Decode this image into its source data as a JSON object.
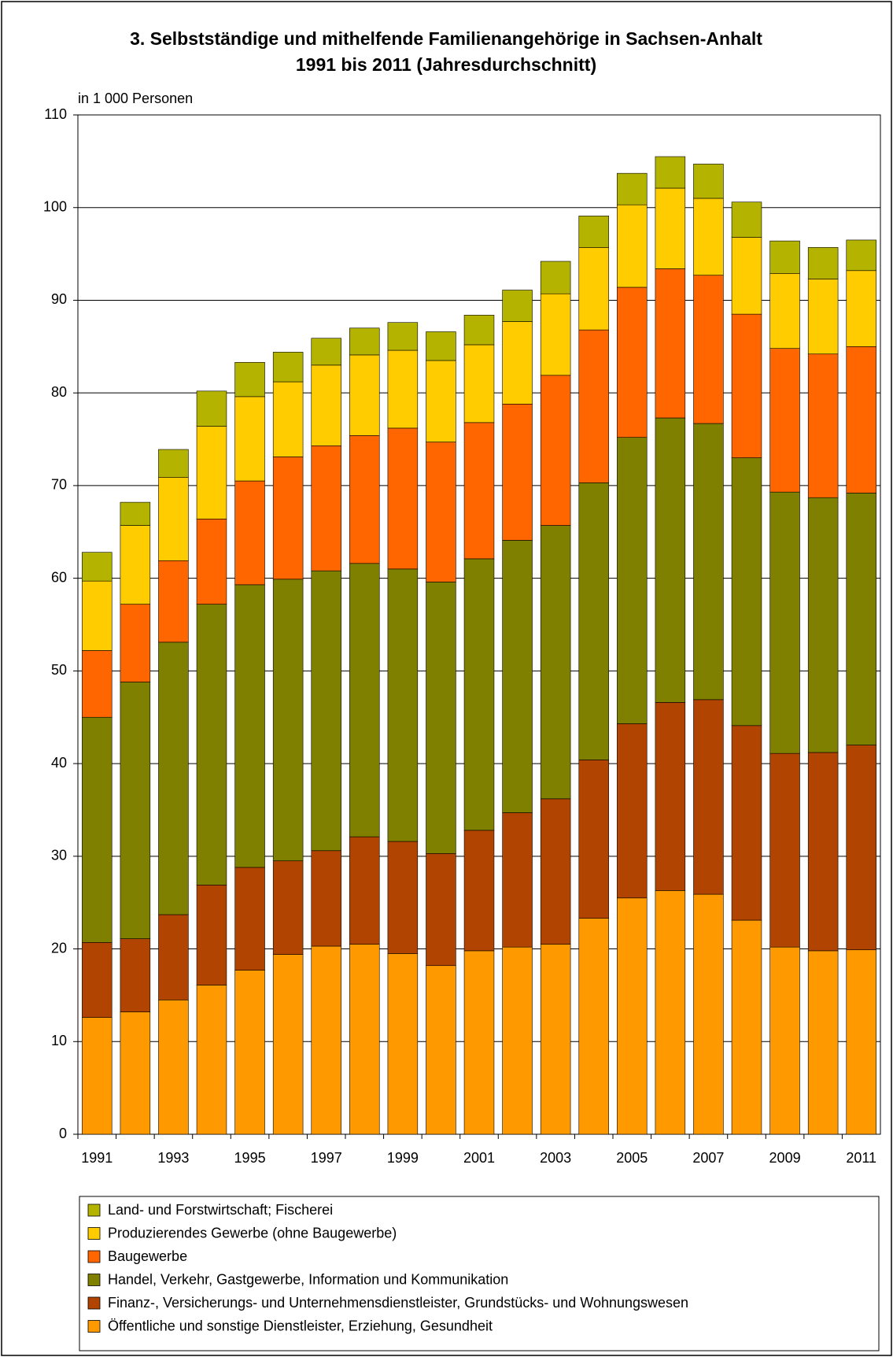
{
  "chart_data": {
    "type": "stacked-bar",
    "title": [
      "3. Selbstständige und mithelfende Familienangehörige in Sachsen-Anhalt",
      "1991 bis 2011  (Jahresdurchschnitt)"
    ],
    "y_label": "in 1 000 Personen",
    "categories": [
      "1991",
      null,
      "1993",
      null,
      "1995",
      null,
      "1997",
      null,
      "1999",
      null,
      "2001",
      null,
      "2003",
      null,
      "2005",
      null,
      "2007",
      null,
      "2009",
      null,
      "2011"
    ],
    "series": [
      {
        "name": "Öffentliche und sonstige Dienstleister, Erziehung, Gesundheit",
        "color": "#ff9900",
        "values": [
          12.6,
          13.2,
          14.5,
          16.1,
          17.7,
          19.4,
          20.3,
          20.5,
          19.5,
          18.2,
          19.8,
          20.2,
          20.5,
          23.3,
          25.5,
          26.3,
          25.9,
          23.1,
          20.2,
          19.8,
          19.9
        ]
      },
      {
        "name": "Finanz-, Versicherungs- und Unternehmensdienstleister, Grundstücks- und Wohnungswesen",
        "color": "#b04400",
        "values": [
          8.1,
          7.9,
          9.2,
          10.8,
          11.1,
          10.1,
          10.3,
          11.6,
          12.1,
          12.1,
          13.0,
          14.5,
          15.7,
          17.1,
          18.8,
          20.3,
          21.0,
          21.0,
          20.9,
          21.4,
          22.1
        ]
      },
      {
        "name": "Handel, Verkehr, Gastgewerbe, Information und Kommunikation",
        "color": "#808000",
        "values": [
          24.3,
          27.7,
          29.4,
          30.3,
          30.5,
          30.4,
          30.2,
          29.5,
          29.4,
          29.3,
          29.3,
          29.4,
          29.5,
          29.9,
          30.9,
          30.7,
          29.8,
          28.9,
          28.2,
          27.5,
          27.2
        ]
      },
      {
        "name": "Baugewerbe",
        "color": "#ff6600",
        "values": [
          7.2,
          8.4,
          8.8,
          9.2,
          11.2,
          13.2,
          13.5,
          13.8,
          15.2,
          15.1,
          14.7,
          14.7,
          16.2,
          16.5,
          16.2,
          16.1,
          16.0,
          15.5,
          15.5,
          15.5,
          15.8
        ]
      },
      {
        "name": "Produzierendes Gewerbe (ohne Baugewerbe)",
        "color": "#ffcc00",
        "values": [
          7.5,
          8.5,
          9.0,
          10.0,
          9.1,
          8.1,
          8.7,
          8.7,
          8.4,
          8.8,
          8.4,
          8.9,
          8.8,
          8.9,
          8.9,
          8.7,
          8.3,
          8.3,
          8.1,
          8.1,
          8.2
        ]
      },
      {
        "name": "Land- und Forstwirtschaft; Fischerei",
        "color": "#b3b300",
        "values": [
          3.1,
          2.5,
          3.0,
          3.8,
          3.7,
          3.2,
          2.9,
          2.9,
          3.0,
          3.1,
          3.2,
          3.4,
          3.5,
          3.4,
          3.4,
          3.4,
          3.7,
          3.8,
          3.5,
          3.4,
          3.3
        ]
      }
    ],
    "ylim": [
      0,
      110
    ],
    "yticks": [
      0,
      10,
      20,
      30,
      40,
      50,
      60,
      70,
      80,
      90,
      100,
      110
    ],
    "grid": true
  }
}
